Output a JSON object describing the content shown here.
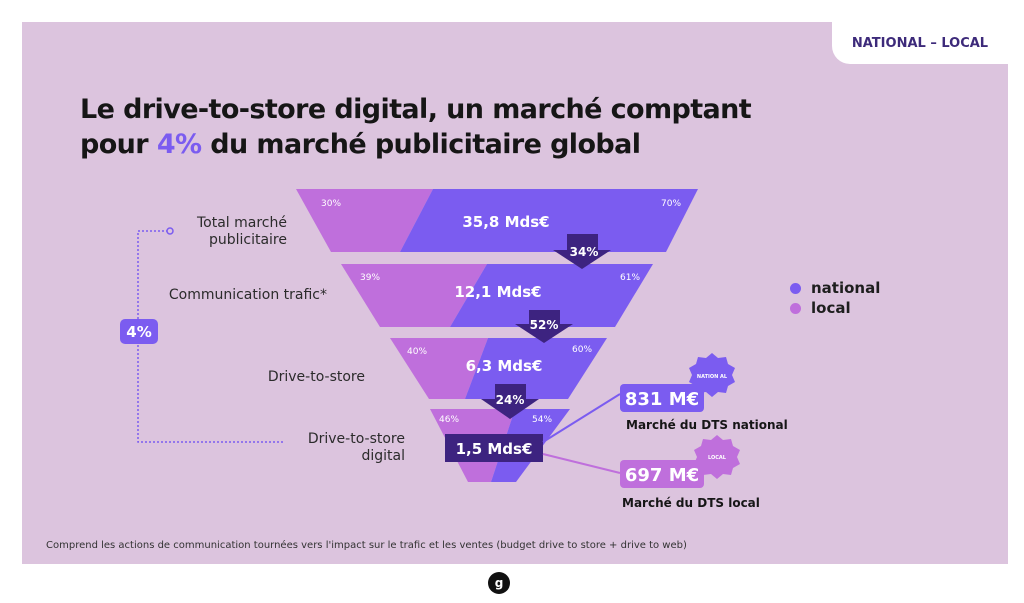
{
  "tag": "NATIONAL – LOCAL",
  "title": {
    "line1": "Le drive-to-store digital, un marché comptant",
    "line2_prefix": "pour ",
    "line2_highlight": "4%",
    "line2_suffix": " du marché publicitaire global"
  },
  "stages": [
    {
      "label": "Total marché publicitaire",
      "value": "35,8 Mds€",
      "local_pct": "30%",
      "national_pct": "70%"
    },
    {
      "label": "Communication trafic*",
      "value": "12,1 Mds€",
      "local_pct": "39%",
      "national_pct": "61%"
    },
    {
      "label": "Drive-to-store",
      "value": "6,3 Mds€",
      "local_pct": "40%",
      "national_pct": "60%"
    },
    {
      "label": "Drive-to-store digital",
      "value": "1,5 Mds€",
      "local_pct": "46%",
      "national_pct": "54%"
    }
  ],
  "conversions": [
    "34%",
    "52%",
    "24%"
  ],
  "bracket_value": "4%",
  "legend": [
    {
      "label": "national",
      "color": "#7b5cf0"
    },
    {
      "label": "local",
      "color": "#bf6fdc"
    }
  ],
  "outputs": {
    "national": {
      "value": "831 M€",
      "caption": "Marché du DTS national",
      "badge": "NATION AL"
    },
    "local": {
      "value": "697 M€",
      "caption": "Marché du DTS local",
      "badge": "LOCAL"
    }
  },
  "footnote": "Comprend les actions de communication tournées vers l'impact sur le trafic et les ventes (budget drive to store + drive to web)",
  "logo": "g",
  "colors": {
    "background": "#dcc4de",
    "national": "#7b5cf0",
    "local": "#bf6fdc",
    "dark": "#3d2380",
    "title": "#161616"
  }
}
